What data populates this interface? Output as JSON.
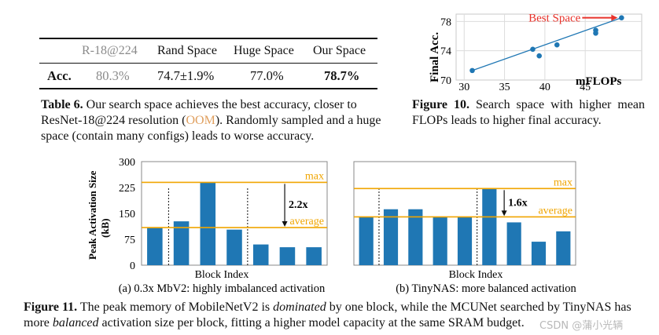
{
  "table6": {
    "headers": [
      "R-18@224",
      "Rand Space",
      "Huge Space",
      "Our Space"
    ],
    "row_label": "Acc.",
    "values": [
      "80.3%",
      "74.7±1.9%",
      "77.0%",
      "78.7%"
    ],
    "caption_label": "Table 6.",
    "caption_pre": "Our search space achieves the best accuracy, closer to ResNet-18@224 resolution (",
    "caption_oom": "OOM",
    "caption_post": "). Randomly sampled and a huge space (contain many configs) leads to worse accuracy."
  },
  "figure10": {
    "caption_label": "Figure 10.",
    "caption_text": "Search space with higher mean FLOPs leads to higher final accuracy.",
    "chart_data": {
      "type": "scatter",
      "title": "",
      "xlabel": "mFLOPs",
      "ylabel": "Final Acc.",
      "xlim": [
        29,
        52
      ],
      "ylim": [
        70,
        79
      ],
      "xticks": [
        30,
        35,
        40,
        45
      ],
      "yticks": [
        70,
        74,
        78
      ],
      "points": [
        {
          "x": 31.0,
          "y": 71.3
        },
        {
          "x": 38.5,
          "y": 74.2
        },
        {
          "x": 39.3,
          "y": 73.3
        },
        {
          "x": 41.5,
          "y": 74.8
        },
        {
          "x": 46.3,
          "y": 76.4
        },
        {
          "x": 46.3,
          "y": 76.8
        },
        {
          "x": 49.5,
          "y": 78.5
        }
      ],
      "trendline": [
        {
          "x": 31.0,
          "y": 71.3
        },
        {
          "x": 49.5,
          "y": 78.5
        }
      ],
      "annotation": "Best Space",
      "colors": {
        "points": "#1f77b4",
        "annotation": "#e8322a"
      }
    }
  },
  "figure11": {
    "ylabel_line1": "Peak Activation Size",
    "ylabel_line2": "(kB)",
    "xlabel": "Block Index",
    "caption_label": "Figure 11.",
    "caption_pre": "The peak memory of MobileNetV2 is ",
    "caption_em1": "dominated",
    "caption_mid": " by one block, while the MCUNet searched by TinyNAS has more ",
    "caption_em2": "balanced",
    "caption_post": " activation size per block, fitting a higher model capacity at the same SRAM budget.",
    "chart_data": [
      {
        "type": "bar",
        "subtitle": "(a) 0.3x MbV2: highly imbalanced activation",
        "ylim": [
          0,
          300
        ],
        "yticks": [
          0,
          75,
          150,
          225,
          300
        ],
        "values": [
          110,
          127,
          240,
          103,
          60,
          52,
          52
        ],
        "max_line": 240,
        "avg_line": 109,
        "ratio_label": "2.2x",
        "max_label": "max",
        "avg_label": "average",
        "dashed_after": [
          1,
          4
        ]
      },
      {
        "type": "bar",
        "subtitle": "(b) TinyNAS: more balanced activation",
        "ylim": [
          0,
          300
        ],
        "values": [
          140,
          162,
          162,
          140,
          140,
          222,
          124,
          68,
          98
        ],
        "max_line": 222,
        "avg_line": 140,
        "ratio_label": "1.6x",
        "max_label": "max",
        "avg_label": "average",
        "dashed_after": [
          1,
          5
        ]
      }
    ],
    "colors": {
      "bar": "#1f77b4",
      "line": "#f0a500"
    }
  },
  "watermark": "CSDN @蒲小光辆"
}
